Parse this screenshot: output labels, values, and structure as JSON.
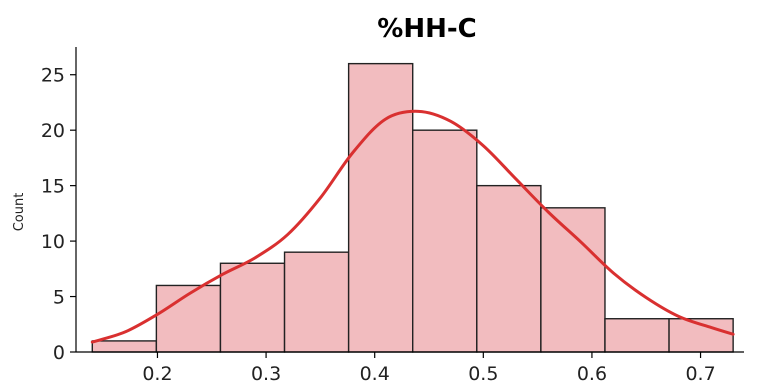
{
  "chart_data": {
    "type": "bar",
    "title": "%HH-C",
    "xlabel": "",
    "ylabel": "Count",
    "xlim": [
      0.125,
      0.74
    ],
    "ylim": [
      0,
      27.5
    ],
    "xticks": [
      0.2,
      0.3,
      0.4,
      0.5,
      0.6,
      0.7
    ],
    "xtick_labels": [
      "0.2",
      "0.3",
      "0.4",
      "0.5",
      "0.6",
      "0.7"
    ],
    "yticks": [
      0,
      5,
      10,
      15,
      20,
      25
    ],
    "ytick_labels": [
      "0",
      "5",
      "10",
      "15",
      "20",
      "25"
    ],
    "grid": false,
    "bins": [
      {
        "x0": 0.14,
        "x1": 0.199,
        "count": 1
      },
      {
        "x0": 0.199,
        "x1": 0.258,
        "count": 6
      },
      {
        "x0": 0.258,
        "x1": 0.317,
        "count": 8
      },
      {
        "x0": 0.317,
        "x1": 0.376,
        "count": 9
      },
      {
        "x0": 0.376,
        "x1": 0.435,
        "count": 26
      },
      {
        "x0": 0.435,
        "x1": 0.494,
        "count": 20
      },
      {
        "x0": 0.494,
        "x1": 0.553,
        "count": 15
      },
      {
        "x0": 0.553,
        "x1": 0.612,
        "count": 13
      },
      {
        "x0": 0.612,
        "x1": 0.671,
        "count": 3
      },
      {
        "x0": 0.671,
        "x1": 0.73,
        "count": 3
      }
    ],
    "kde": {
      "x": [
        0.14,
        0.17,
        0.2,
        0.23,
        0.26,
        0.29,
        0.32,
        0.35,
        0.38,
        0.41,
        0.44,
        0.47,
        0.5,
        0.53,
        0.56,
        0.59,
        0.62,
        0.65,
        0.68,
        0.71,
        0.73
      ],
      "y": [
        0.9,
        1.8,
        3.4,
        5.3,
        7.0,
        8.5,
        10.6,
        13.9,
        18.0,
        21.0,
        21.7,
        20.8,
        18.6,
        15.6,
        12.6,
        9.9,
        7.1,
        4.9,
        3.2,
        2.2,
        1.6
      ]
    },
    "colors": {
      "bar_fill": "#f2bcbf",
      "bar_edge": "#222222",
      "kde": "#d93030"
    }
  }
}
